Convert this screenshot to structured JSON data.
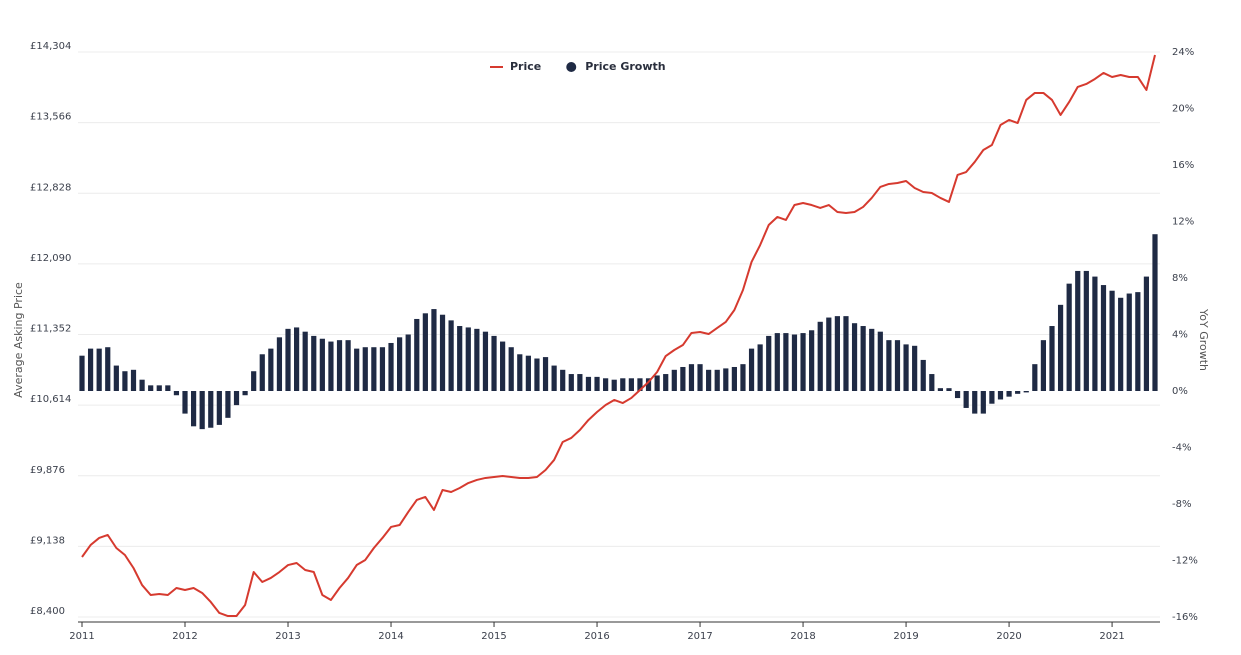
{
  "chart_data": {
    "type": "line-bar",
    "categories": [
      "2011",
      null,
      null,
      null,
      null,
      null,
      null,
      null,
      null,
      null,
      null,
      null,
      "2012",
      null,
      null,
      null,
      null,
      null,
      null,
      null,
      null,
      null,
      null,
      null,
      "2013",
      null,
      null,
      null,
      null,
      null,
      null,
      null,
      null,
      null,
      null,
      null,
      "2014",
      null,
      null,
      null,
      null,
      null,
      null,
      null,
      null,
      null,
      null,
      null,
      "2015",
      null,
      null,
      null,
      null,
      null,
      null,
      null,
      null,
      null,
      null,
      null,
      "2016",
      null,
      null,
      null,
      null,
      null,
      null,
      null,
      null,
      null,
      null,
      null,
      "2017",
      null,
      null,
      null,
      null,
      null,
      null,
      null,
      null,
      null,
      null,
      null,
      "2018",
      null,
      null,
      null,
      null,
      null,
      null,
      null,
      null,
      null,
      null,
      null,
      "2019",
      null,
      null,
      null,
      null,
      null,
      null,
      null,
      null,
      null,
      null,
      null,
      "2020",
      null,
      null,
      null,
      null,
      null,
      null,
      null,
      null,
      null,
      null,
      null,
      "2021",
      null,
      null,
      null,
      null,
      null
    ],
    "series": [
      {
        "name": "Price",
        "kind": "line",
        "color": "#d63a2f",
        "values": [
          9027,
          9152,
          9226,
          9257,
          9121,
          9048,
          8912,
          8734,
          8630,
          8640,
          8630,
          8703,
          8682,
          8703,
          8651,
          8557,
          8442,
          8410,
          8410,
          8525,
          8870,
          8766,
          8808,
          8870,
          8943,
          8964,
          8891,
          8870,
          8630,
          8578,
          8703,
          8808,
          8943,
          8996,
          9121,
          9226,
          9341,
          9361,
          9497,
          9623,
          9654,
          9518,
          9727,
          9706,
          9748,
          9800,
          9832,
          9853,
          9863,
          9873,
          9863,
          9853,
          9853,
          9863,
          9936,
          10041,
          10229,
          10271,
          10354,
          10459,
          10542,
          10615,
          10668,
          10636,
          10689,
          10772,
          10856,
          10960,
          11127,
          11190,
          11242,
          11368,
          11378,
          11357,
          11420,
          11483,
          11608,
          11817,
          12110,
          12287,
          12496,
          12580,
          12549,
          12705,
          12726,
          12705,
          12674,
          12705,
          12632,
          12622,
          12632,
          12685,
          12779,
          12894,
          12925,
          12935,
          12956,
          12883,
          12841,
          12831,
          12779,
          12737,
          13019,
          13050,
          13155,
          13280,
          13332,
          13541,
          13594,
          13562,
          13803,
          13876,
          13876,
          13803,
          13646,
          13782,
          13939,
          13970,
          14022,
          14085,
          14043,
          14064,
          14043,
          14043,
          13907,
          14273
        ]
      },
      {
        "name": "Price Growth",
        "kind": "bar",
        "axis": "y2",
        "color": "#1f2a44",
        "values": [
          2.5,
          3.0,
          3.0,
          3.1,
          1.8,
          1.4,
          1.5,
          0.8,
          0.4,
          0.4,
          0.4,
          -0.3,
          -1.6,
          -2.5,
          -2.7,
          -2.6,
          -2.4,
          -1.9,
          -1.0,
          -0.3,
          1.4,
          2.6,
          3.0,
          3.8,
          4.4,
          4.5,
          4.2,
          3.9,
          3.7,
          3.5,
          3.6,
          3.6,
          3.0,
          3.1,
          3.1,
          3.1,
          3.4,
          3.8,
          4.0,
          5.1,
          5.5,
          5.8,
          5.4,
          5.0,
          4.6,
          4.5,
          4.4,
          4.2,
          3.9,
          3.5,
          3.1,
          2.6,
          2.5,
          2.3,
          2.4,
          1.8,
          1.5,
          1.2,
          1.2,
          1.0,
          1.0,
          0.9,
          0.8,
          0.9,
          0.9,
          0.9,
          0.9,
          1.1,
          1.2,
          1.5,
          1.7,
          1.9,
          1.9,
          1.5,
          1.5,
          1.6,
          1.7,
          1.9,
          3.0,
          3.3,
          3.9,
          4.1,
          4.1,
          4.0,
          4.1,
          4.3,
          4.9,
          5.2,
          5.3,
          5.3,
          4.8,
          4.6,
          4.4,
          4.2,
          3.6,
          3.6,
          3.3,
          3.2,
          2.2,
          1.2,
          0.2,
          0.2,
          -0.5,
          -1.2,
          -1.6,
          -1.6,
          -0.9,
          -0.6,
          -0.4,
          -0.2,
          -0.1,
          1.9,
          3.6,
          4.6,
          6.1,
          7.6,
          8.5,
          8.5,
          8.1,
          7.5,
          7.1,
          6.6,
          6.9,
          7.0,
          8.1,
          11.1
        ]
      }
    ],
    "y_label": "Average Asking Price",
    "y2_label": "YoY Growth",
    "ylim": [
      8400,
      14304
    ],
    "yticks": [
      {
        "value": 8400,
        "label": "£8,400"
      },
      {
        "value": 9138,
        "label": "£9,138"
      },
      {
        "value": 9876,
        "label": "£9,876"
      },
      {
        "value": 10614,
        "label": "£10,614"
      },
      {
        "value": 11352,
        "label": "£11,352"
      },
      {
        "value": 12090,
        "label": "£12,090"
      },
      {
        "value": 12828,
        "label": "£12,828"
      },
      {
        "value": 13566,
        "label": "£13,566"
      },
      {
        "value": 14304,
        "label": "£14,304"
      }
    ],
    "y2lim": [
      -16,
      24
    ],
    "y2ticks": [
      {
        "value": -16,
        "label": "-16%"
      },
      {
        "value": -12,
        "label": "-12%"
      },
      {
        "value": -8,
        "label": "-8%"
      },
      {
        "value": -4,
        "label": "-4%"
      },
      {
        "value": 0,
        "label": "0%"
      },
      {
        "value": 4,
        "label": "4%"
      },
      {
        "value": 8,
        "label": "8%"
      },
      {
        "value": 12,
        "label": "12%"
      },
      {
        "value": 16,
        "label": "16%"
      },
      {
        "value": 20,
        "label": "20%"
      },
      {
        "value": 24,
        "label": "24%"
      }
    ],
    "grid": true,
    "legend": "top"
  }
}
